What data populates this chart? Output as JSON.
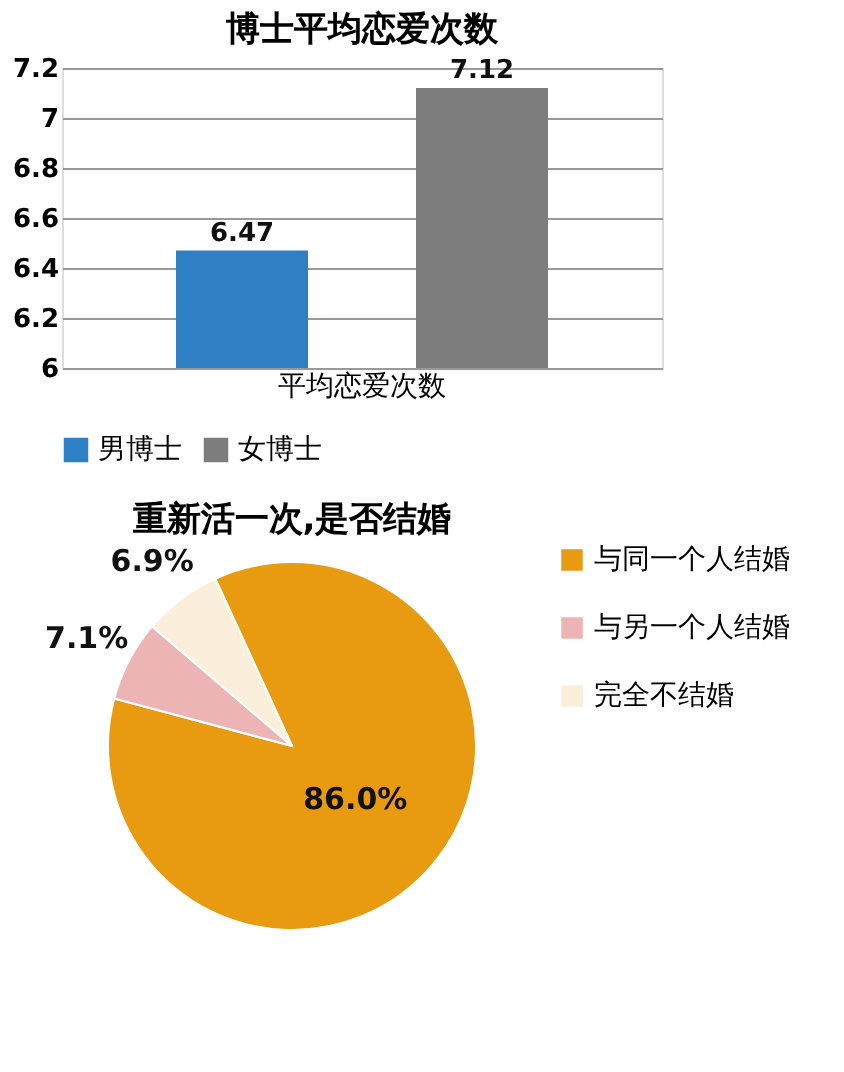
{
  "chart_data": [
    {
      "type": "bar",
      "title": "博士平均恋爱次数",
      "categories": [
        "平均恋爱次数"
      ],
      "series": [
        {
          "name": "男博士",
          "color": "#2f7fc4",
          "values": [
            6.47
          ]
        },
        {
          "name": "女博士",
          "color": "#7d7d7d",
          "values": [
            7.12
          ]
        }
      ],
      "ylim": [
        6,
        7.2
      ],
      "yticks": [
        6,
        6.2,
        6.4,
        6.6,
        6.8,
        7,
        7.2
      ],
      "grid": "y",
      "legend": "bottom",
      "data_labels": true
    },
    {
      "type": "pie",
      "title": "重新活一次,是否结婚",
      "categories": [
        "与同一个人结婚",
        "与另一个人结婚",
        "完全不结婚"
      ],
      "values": [
        86.0,
        7.1,
        6.9
      ],
      "colors": [
        "#e89a10",
        "#ecb4b4",
        "#fbeedb"
      ],
      "value_labels": [
        "86.0%",
        "7.1%",
        "6.9%"
      ],
      "legend": "right"
    }
  ]
}
